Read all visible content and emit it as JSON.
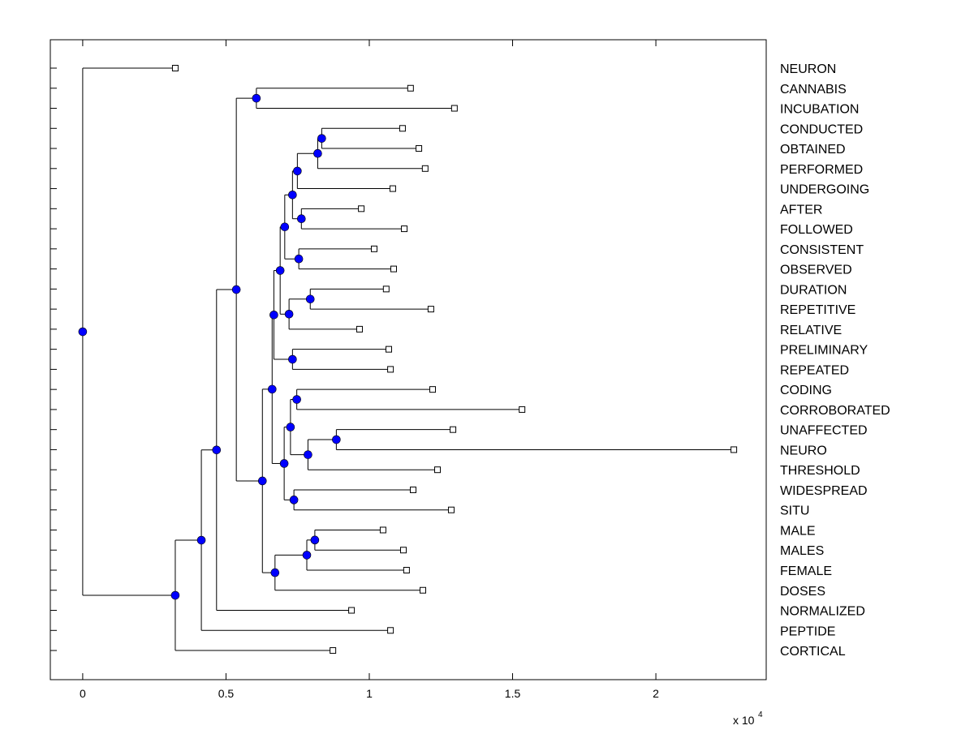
{
  "chart_data": {
    "type": "dendrogram",
    "orientation": "horizontal",
    "title": "",
    "xlabel": "",
    "ylabel": "",
    "x_multiplier": "x 10",
    "x_multiplier_exponent": "4",
    "xlim": [
      -0.113,
      2.385
    ],
    "xticks": [
      0,
      0.5,
      1,
      1.5,
      2
    ],
    "xtick_labels": [
      "0",
      "0.5",
      "1",
      "1.5",
      "2"
    ],
    "grid": false,
    "colors": {
      "internal_node": "#0000ff",
      "leaf_node": "#ffffff",
      "line": "#000000"
    },
    "tree": {
      "height": 0,
      "children": [
        {
          "label": "NEURON",
          "height": 0.323
        },
        {
          "height": 0.323,
          "children": [
            {
              "height": 0.414,
              "children": [
                {
                  "height": 0.467,
                  "children": [
                    {
                      "height": 0.536,
                      "children": [
                        {
                          "height": 0.606,
                          "children": [
                            {
                              "label": "CANNABIS",
                              "height": 1.144
                            },
                            {
                              "label": "INCUBATION",
                              "height": 1.297
                            }
                          ]
                        },
                        {
                          "height": 0.627,
                          "children": [
                            {
                              "height": 0.661,
                              "children": [
                                {
                                  "height": 0.667,
                                  "children": [
                                    {
                                      "height": 0.689,
                                      "children": [
                                        {
                                          "height": 0.705,
                                          "children": [
                                            {
                                              "height": 0.732,
                                              "children": [
                                                {
                                                  "height": 0.749,
                                                  "children": [
                                                    {
                                                      "height": 0.82,
                                                      "children": [
                                                        {
                                                          "height": 0.834,
                                                          "children": [
                                                            {
                                                              "label": "CONDUCTED",
                                                              "height": 1.116
                                                            },
                                                            {
                                                              "label": "OBTAINED",
                                                              "height": 1.173
                                                            }
                                                          ]
                                                        },
                                                        {
                                                          "label": "PERFORMED",
                                                          "height": 1.195
                                                        }
                                                      ]
                                                    },
                                                    {
                                                      "label": "UNDERGOING",
                                                      "height": 1.082
                                                    }
                                                  ]
                                                },
                                                {
                                                  "height": 0.763,
                                                  "children": [
                                                    {
                                                      "label": "AFTER",
                                                      "height": 0.972
                                                    },
                                                    {
                                                      "label": "FOLLOWED",
                                                      "height": 1.122
                                                    }
                                                  ]
                                                }
                                              ]
                                            },
                                            {
                                              "height": 0.754,
                                              "children": [
                                                {
                                                  "label": "CONSISTENT",
                                                  "height": 1.017
                                                },
                                                {
                                                  "label": "OBSERVED",
                                                  "height": 1.085
                                                }
                                              ]
                                            }
                                          ]
                                        },
                                        {
                                          "height": 0.72,
                                          "children": [
                                            {
                                              "height": 0.794,
                                              "children": [
                                                {
                                                  "label": "DURATION",
                                                  "height": 1.059
                                                },
                                                {
                                                  "label": "REPETITIVE",
                                                  "height": 1.215
                                                }
                                              ]
                                            },
                                            {
                                              "label": "RELATIVE",
                                              "height": 0.966
                                            }
                                          ]
                                        }
                                      ]
                                    },
                                    {
                                      "height": 0.732,
                                      "children": [
                                        {
                                          "label": "PRELIMINARY",
                                          "height": 1.068
                                        },
                                        {
                                          "label": "REPEATED",
                                          "height": 1.074
                                        }
                                      ]
                                    }
                                  ]
                                },
                                {
                                  "height": 0.703,
                                  "children": [
                                    {
                                      "height": 0.725,
                                      "children": [
                                        {
                                          "height": 0.747,
                                          "children": [
                                            {
                                              "label": "CODING",
                                              "height": 1.221
                                            },
                                            {
                                              "label": "CORROBORATED",
                                              "height": 1.533
                                            }
                                          ]
                                        },
                                        {
                                          "height": 0.786,
                                          "children": [
                                            {
                                              "height": 0.885,
                                              "children": [
                                                {
                                                  "label": "UNAFFECTED",
                                                  "height": 1.292
                                                },
                                                {
                                                  "label": "NEURO",
                                                  "height": 2.272
                                                }
                                              ]
                                            },
                                            {
                                              "label": "THRESHOLD",
                                              "height": 1.238
                                            }
                                          ]
                                        }
                                      ]
                                    },
                                    {
                                      "height": 0.737,
                                      "children": [
                                        {
                                          "label": "WIDESPREAD",
                                          "height": 1.153
                                        },
                                        {
                                          "label": "SITU",
                                          "height": 1.286
                                        }
                                      ]
                                    }
                                  ]
                                }
                              ]
                            },
                            {
                              "height": 0.671,
                              "children": [
                                {
                                  "height": 0.782,
                                  "children": [
                                    {
                                      "height": 0.81,
                                      "children": [
                                        {
                                          "label": "MALE",
                                          "height": 1.048
                                        },
                                        {
                                          "label": "MALES",
                                          "height": 1.119
                                        }
                                      ]
                                    },
                                    {
                                      "label": "FEMALE",
                                      "height": 1.13
                                    }
                                  ]
                                },
                                {
                                  "label": "DOSES",
                                  "height": 1.187
                                }
                              ]
                            }
                          ]
                        }
                      ]
                    },
                    {
                      "label": "NORMALIZED",
                      "height": 0.938
                    }
                  ]
                },
                {
                  "label": "PEPTIDE",
                  "height": 1.074
                }
              ]
            },
            {
              "label": "CORTICAL",
              "height": 0.873
            }
          ]
        }
      ]
    }
  }
}
